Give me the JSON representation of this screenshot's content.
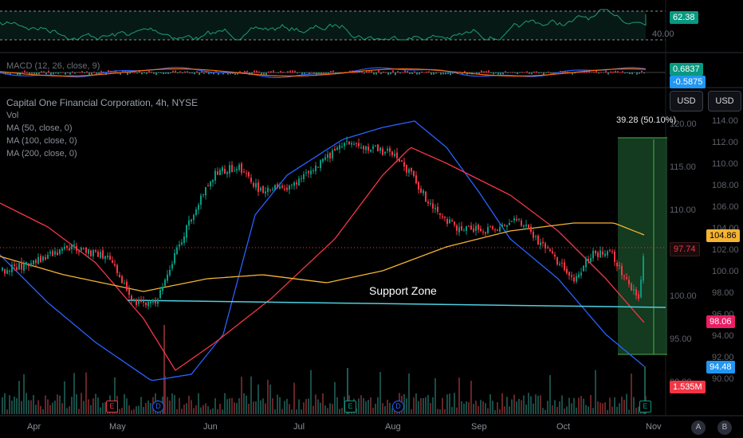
{
  "chart_data": [
    {
      "type": "line",
      "name": "RSI panel",
      "value_label": "62.38",
      "upper_band_label": "",
      "lower_band_label": "40.00",
      "tag_color": "#089981",
      "line_color": "#1f9b78"
    },
    {
      "type": "line",
      "name": "MACD panel",
      "title": "MACD (12, 26, close, 9)",
      "values": [
        "0.6837",
        "-0.5875"
      ],
      "tag_colors": [
        "#089981",
        "#2196f3"
      ]
    },
    {
      "type": "candlestick",
      "title": "Capital One Financial Corporation, 4h, NYSE",
      "legend": [
        "Vol",
        "MA (50, close, 0)",
        "MA (100, close, 0)",
        "MA (200, close, 0)"
      ],
      "price_axis_ticks": [
        "120.00",
        "115.00",
        "110.00",
        "105.00",
        "100.00",
        "95.00",
        "90.00"
      ],
      "secondary_axis_ticks": [
        "114.00",
        "112.00",
        "110.00",
        "108.00",
        "106.00",
        "104.00",
        "102.00",
        "100.00",
        "98.00",
        "96.00",
        "94.00",
        "92.00",
        "90.00"
      ],
      "x_ticks": [
        "Apr",
        "May",
        "Jun",
        "Jul",
        "Aug",
        "Sep",
        "Oct",
        "Nov"
      ],
      "price_tags": [
        {
          "text": "97.74",
          "color": "#f23645",
          "bg": "#1a0a0c"
        },
        {
          "text": "104.86",
          "color": "#000",
          "bg": "#f5b331"
        },
        {
          "text": "98.06",
          "color": "#fff",
          "bg": "#e91e63"
        },
        {
          "text": "94.48",
          "color": "#fff",
          "bg": "#2196f3"
        },
        {
          "text": "1.535M",
          "color": "#fff",
          "bg": "#f23645"
        }
      ],
      "measure_label": "39.28 (50.10%)",
      "annotation": "Support Zone",
      "currency_buttons": [
        "USD",
        "USD"
      ],
      "event_markers": [
        "E",
        "D",
        "E",
        "D",
        "E"
      ],
      "corner_buttons": [
        "A",
        "B"
      ],
      "colors": {
        "up": "#089981",
        "down": "#f23645",
        "ma50": "#2962ff",
        "ma100": "#f23645",
        "ma200": "#f5b331",
        "support": "#4dd0e1",
        "measure": "#4caf50"
      }
    }
  ]
}
